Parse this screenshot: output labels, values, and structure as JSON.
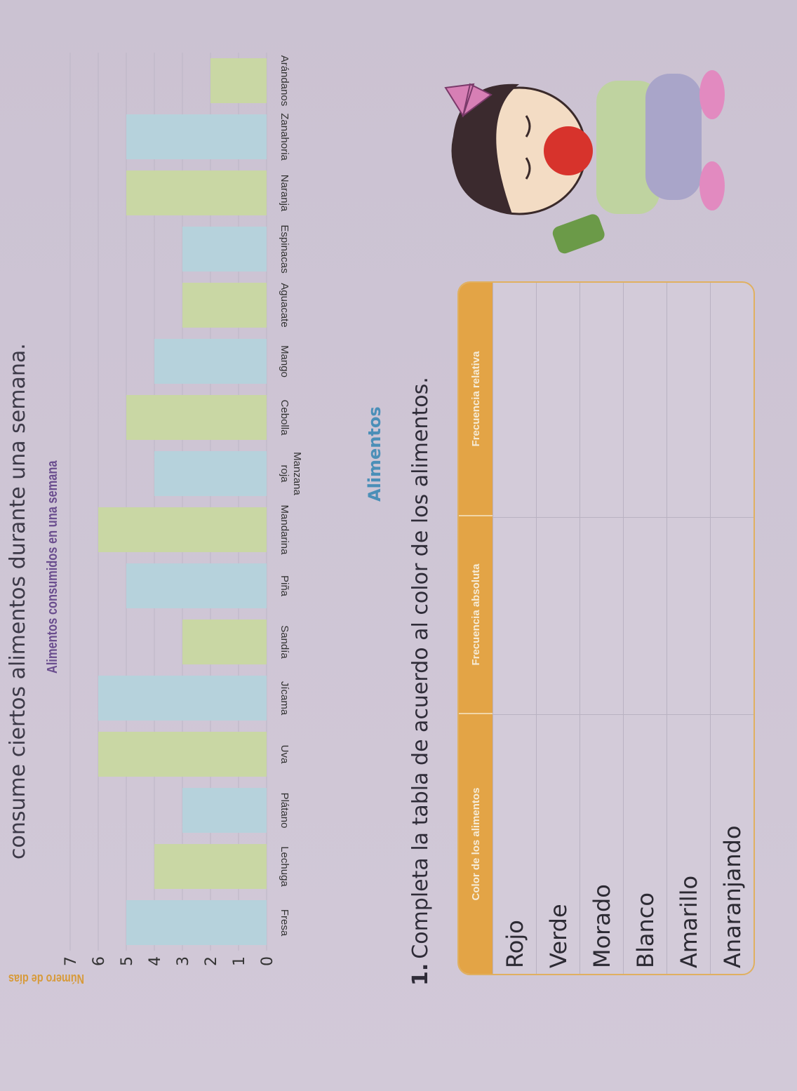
{
  "intro_text": "consume ciertos alimentos durante una semana.",
  "chart_data": {
    "type": "bar",
    "orientation": "vertical",
    "title": "Alimentos consumidos en una semana",
    "xlabel": "Alimentos",
    "ylabel": "Número de días",
    "ylim": [
      0,
      7
    ],
    "yticks": [
      0,
      1,
      2,
      3,
      4,
      5,
      6,
      7
    ],
    "grid": true,
    "categories": [
      "Fresa",
      "Lechuga",
      "Plátano",
      "Uva",
      "Jícama",
      "Sandía",
      "Piña",
      "Mandarina",
      "Manzana roja",
      "Cebolla",
      "Mango",
      "Aguacate",
      "Espinacas",
      "Naranja",
      "Zanahoria",
      "Arándanos"
    ],
    "values": [
      5,
      4,
      3,
      6,
      6,
      3,
      5,
      6,
      4,
      5,
      4,
      3,
      3,
      5,
      5,
      2
    ],
    "colors": {
      "blue": "#b6d2dc",
      "green": "#c9d7a4"
    }
  },
  "exercise": {
    "number": "1.",
    "text": "Completa la tabla de acuerdo al color de los alimentos.",
    "headers": [
      "Color de los alimentos",
      "Frecuencia absoluta",
      "Frecuencia relativa"
    ],
    "rows": [
      "Rojo",
      "Verde",
      "Morado",
      "Blanco",
      "Amarillo",
      "Anaranjando"
    ],
    "header_color": "#e3a446"
  }
}
